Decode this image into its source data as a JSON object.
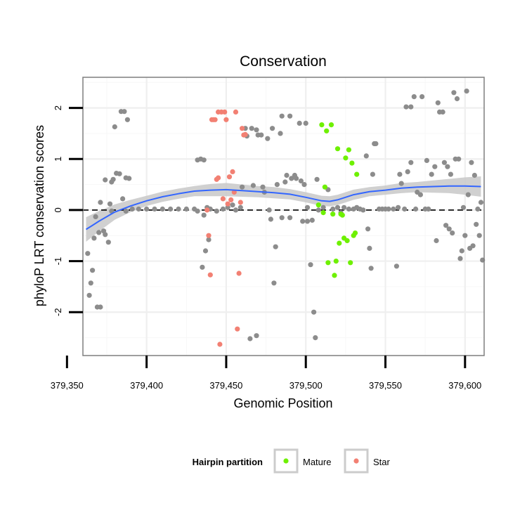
{
  "chart_data": {
    "type": "scatter",
    "title": "Conservation",
    "xlabel": "Genomic Position",
    "ylabel": "phyloP LRT conservation scores",
    "xlim": [
      379360,
      379612
    ],
    "ylim": [
      -2.85,
      2.6
    ],
    "x_ticks": [
      379350,
      379400,
      379450,
      379500,
      379550,
      379600
    ],
    "x_tick_labels": [
      "379,350",
      "379,400",
      "379,450",
      "379,500",
      "379,550",
      "379,600"
    ],
    "y_ticks": [
      -2,
      -1,
      0,
      1,
      2
    ],
    "y_tick_labels": [
      "-2",
      "-1",
      "0",
      "1",
      "2"
    ],
    "reference_line": 0,
    "grid": true,
    "legend": {
      "title": "Hairpin partition",
      "placement": "bottom",
      "entries": [
        {
          "label": "Mature",
          "color": "#6ef000"
        },
        {
          "label": "Star",
          "color": "#f28073"
        }
      ]
    },
    "colors": {
      "other": "#8c8c8c",
      "Mature": "#6ef000",
      "Star": "#f28073",
      "smooth": "#3366ff",
      "band": "#c8c8c8"
    },
    "series": [
      {
        "category": "other",
        "points": [
          [
            379363,
            -0.85
          ],
          [
            379364,
            -1.67
          ],
          [
            379365,
            -1.43
          ],
          [
            379366,
            -1.18
          ],
          [
            379367,
            -0.55
          ],
          [
            379368,
            -0.13
          ],
          [
            379369,
            -1.9
          ],
          [
            379371,
            -1.9
          ],
          [
            379370,
            -0.44
          ],
          [
            379371,
            0.15
          ],
          [
            379373,
            -0.41
          ],
          [
            379374,
            0.59
          ],
          [
            379374,
            -0.48
          ],
          [
            379376,
            -0.63
          ],
          [
            379377,
            0.12
          ],
          [
            379378,
            -0.02
          ],
          [
            379378,
            0.55
          ],
          [
            379379,
            0.6
          ],
          [
            379380,
            1.63
          ],
          [
            379381,
            0.72
          ],
          [
            379383,
            0.71
          ],
          [
            379384,
            1.93
          ],
          [
            379385,
            0.22
          ],
          [
            379386,
            1.93
          ],
          [
            379387,
            0.63
          ],
          [
            379388,
            1.77
          ],
          [
            379389,
            0.62
          ],
          [
            379387,
            -0.02
          ],
          [
            379391,
            0.02
          ],
          [
            379395,
            0.02
          ],
          [
            379400,
            0.02
          ],
          [
            379405,
            0.02
          ],
          [
            379410,
            0.02
          ],
          [
            379415,
            0.02
          ],
          [
            379420,
            0.02
          ],
          [
            379425,
            0.02
          ],
          [
            379430,
            0.02
          ],
          [
            379432,
            0.98
          ],
          [
            379432,
            -0.02
          ],
          [
            379434,
            1.0
          ],
          [
            379436,
            0.98
          ],
          [
            379435,
            -1.12
          ],
          [
            379436,
            -0.1
          ],
          [
            379438,
            0.05
          ],
          [
            379437,
            -0.8
          ],
          [
            379439,
            -0.58
          ],
          [
            379440,
            0.02
          ],
          [
            379444,
            -0.02
          ],
          [
            379448,
            0.02
          ],
          [
            379451,
            0.05
          ],
          [
            379454,
            0.1
          ],
          [
            379456,
            0.0
          ],
          [
            379459,
            0.05
          ],
          [
            379460,
            0.45
          ],
          [
            379462,
            1.6
          ],
          [
            379463,
            1.45
          ],
          [
            379465,
            -2.52
          ],
          [
            379466,
            1.6
          ],
          [
            379467,
            0.48
          ],
          [
            379469,
            1.57
          ],
          [
            379469,
            -2.46
          ],
          [
            379470,
            1.47
          ],
          [
            379472,
            1.47
          ],
          [
            379473,
            0.45
          ],
          [
            379474,
            0.35
          ],
          [
            379476,
            1.4
          ],
          [
            379477,
            0.0
          ],
          [
            379478,
            -0.18
          ],
          [
            379479,
            1.6
          ],
          [
            379480,
            -1.43
          ],
          [
            379481,
            -0.72
          ],
          [
            379482,
            0.5
          ],
          [
            379484,
            1.5
          ],
          [
            379485,
            1.84
          ],
          [
            379485,
            -0.15
          ],
          [
            379487,
            0.55
          ],
          [
            379488,
            0.68
          ],
          [
            379490,
            1.84
          ],
          [
            379490,
            -0.15
          ],
          [
            379491,
            0.62
          ],
          [
            379493,
            0.68
          ],
          [
            379494,
            0.62
          ],
          [
            379496,
            1.7
          ],
          [
            379497,
            0.57
          ],
          [
            379498,
            -0.22
          ],
          [
            379499,
            0.5
          ],
          [
            379500,
            1.7
          ],
          [
            379501,
            -0.22
          ],
          [
            379501,
            0.05
          ],
          [
            379503,
            -1.07
          ],
          [
            379504,
            -0.2
          ],
          [
            379505,
            -2.0
          ],
          [
            379506,
            -2.5
          ],
          [
            379507,
            0.6
          ],
          [
            379508,
            0.0
          ],
          [
            379511,
            0.05
          ],
          [
            379514,
            0.4
          ],
          [
            379517,
            0.02
          ],
          [
            379520,
            0.05
          ],
          [
            379522,
            -0.05
          ],
          [
            379524,
            0.05
          ],
          [
            379527,
            0.02
          ],
          [
            379530,
            0.02
          ],
          [
            379532,
            0.05
          ],
          [
            379534,
            0.02
          ],
          [
            379536,
            0.0
          ],
          [
            379538,
            1.06
          ],
          [
            379539,
            -0.37
          ],
          [
            379540,
            -0.75
          ],
          [
            379541,
            -1.14
          ],
          [
            379542,
            0.7
          ],
          [
            379543,
            1.3
          ],
          [
            379544,
            1.3
          ],
          [
            379546,
            0.02
          ],
          [
            379548,
            0.02
          ],
          [
            379550,
            0.02
          ],
          [
            379552,
            0.02
          ],
          [
            379555,
            0.02
          ],
          [
            379557,
            -1.1
          ],
          [
            379558,
            0.05
          ],
          [
            379559,
            0.7
          ],
          [
            379560,
            0.52
          ],
          [
            379562,
            0.02
          ],
          [
            379563,
            2.02
          ],
          [
            379564,
            0.75
          ],
          [
            379566,
            0.93
          ],
          [
            379566,
            2.02
          ],
          [
            379568,
            2.22
          ],
          [
            379569,
            0.02
          ],
          [
            379570,
            0.35
          ],
          [
            379572,
            0.3
          ],
          [
            379573,
            2.22
          ],
          [
            379575,
            0.02
          ],
          [
            379576,
            0.97
          ],
          [
            379577,
            0.02
          ],
          [
            379579,
            0.7
          ],
          [
            379581,
            0.85
          ],
          [
            379582,
            -0.6
          ],
          [
            379583,
            2.1
          ],
          [
            379584,
            1.92
          ],
          [
            379586,
            1.92
          ],
          [
            379587,
            0.93
          ],
          [
            379588,
            -0.3
          ],
          [
            379589,
            0.85
          ],
          [
            379590,
            -0.37
          ],
          [
            379591,
            0.7
          ],
          [
            379592,
            -0.45
          ],
          [
            379593,
            2.3
          ],
          [
            379594,
            1.0
          ],
          [
            379595,
            2.18
          ],
          [
            379596,
            1.0
          ],
          [
            379597,
            -0.95
          ],
          [
            379598,
            -0.8
          ],
          [
            379599,
            0.05
          ],
          [
            379600,
            -0.5
          ],
          [
            379601,
            2.33
          ],
          [
            379602,
            0.3
          ],
          [
            379603,
            -0.75
          ],
          [
            379604,
            0.93
          ],
          [
            379605,
            -0.7
          ],
          [
            379606,
            0.68
          ],
          [
            379607,
            -0.28
          ],
          [
            379608,
            0.02
          ],
          [
            379609,
            -0.5
          ],
          [
            379610,
            0.15
          ],
          [
            379611,
            -0.98
          ]
        ]
      },
      {
        "category": "Star",
        "points": [
          [
            379438,
            0.0
          ],
          [
            379439,
            -0.5
          ],
          [
            379440,
            -1.27
          ],
          [
            379441,
            1.77
          ],
          [
            379442,
            1.77
          ],
          [
            379443,
            1.77
          ],
          [
            379444,
            0.6
          ],
          [
            379445,
            1.92
          ],
          [
            379445,
            0.63
          ],
          [
            379446,
            -2.63
          ],
          [
            379447,
            1.92
          ],
          [
            379448,
            0.22
          ],
          [
            379449,
            1.92
          ],
          [
            379450,
            1.77
          ],
          [
            379451,
            0.12
          ],
          [
            379452,
            0.65
          ],
          [
            379453,
            0.2
          ],
          [
            379454,
            0.75
          ],
          [
            379455,
            0.35
          ],
          [
            379456,
            1.92
          ],
          [
            379457,
            -2.33
          ],
          [
            379458,
            -1.24
          ],
          [
            379459,
            0.15
          ],
          [
            379460,
            1.6
          ],
          [
            379461,
            1.47
          ],
          [
            379462,
            1.48
          ]
        ]
      },
      {
        "category": "Mature",
        "points": [
          [
            379508,
            0.1
          ],
          [
            379510,
            1.67
          ],
          [
            379511,
            -0.05
          ],
          [
            379512,
            0.45
          ],
          [
            379513,
            1.55
          ],
          [
            379514,
            -1.03
          ],
          [
            379516,
            1.67
          ],
          [
            379517,
            -0.08
          ],
          [
            379518,
            -1.28
          ],
          [
            379519,
            -1.0
          ],
          [
            379520,
            1.2
          ],
          [
            379521,
            -0.65
          ],
          [
            379522,
            -0.08
          ],
          [
            379523,
            -0.1
          ],
          [
            379524,
            -0.55
          ],
          [
            379525,
            1.02
          ],
          [
            379526,
            -0.6
          ],
          [
            379527,
            1.18
          ],
          [
            379528,
            -1.03
          ],
          [
            379529,
            0.92
          ],
          [
            379530,
            -0.5
          ],
          [
            379531,
            -0.45
          ],
          [
            379532,
            0.7
          ]
        ]
      }
    ],
    "smooth": {
      "points": [
        [
          379362,
          -0.38
        ],
        [
          379370,
          -0.22
        ],
        [
          379380,
          -0.04
        ],
        [
          379390,
          0.08
        ],
        [
          379400,
          0.18
        ],
        [
          379410,
          0.26
        ],
        [
          379420,
          0.32
        ],
        [
          379430,
          0.37
        ],
        [
          379440,
          0.39
        ],
        [
          379450,
          0.4
        ],
        [
          379460,
          0.38
        ],
        [
          379470,
          0.36
        ],
        [
          379480,
          0.34
        ],
        [
          379490,
          0.31
        ],
        [
          379500,
          0.25
        ],
        [
          379510,
          0.18
        ],
        [
          379515,
          0.17
        ],
        [
          379520,
          0.2
        ],
        [
          379530,
          0.3
        ],
        [
          379540,
          0.36
        ],
        [
          379550,
          0.39
        ],
        [
          379560,
          0.43
        ],
        [
          379570,
          0.45
        ],
        [
          379580,
          0.46
        ],
        [
          379590,
          0.47
        ],
        [
          379600,
          0.47
        ],
        [
          379610,
          0.46
        ]
      ],
      "band_halfwidth": [
        0.24,
        0.2,
        0.15,
        0.12,
        0.1,
        0.1,
        0.1,
        0.1,
        0.12,
        0.13,
        0.12,
        0.11,
        0.11,
        0.1,
        0.1,
        0.1,
        0.1,
        0.1,
        0.1,
        0.09,
        0.09,
        0.1,
        0.1,
        0.12,
        0.14,
        0.17,
        0.2
      ]
    }
  }
}
